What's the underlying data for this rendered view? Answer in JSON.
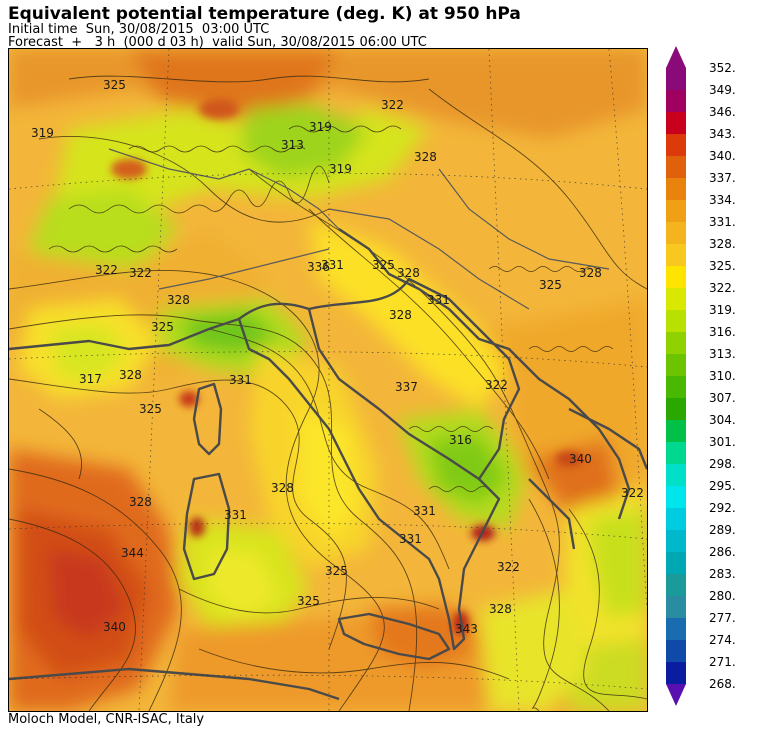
{
  "header": {
    "title": "Equivalent potential temperature (deg. K) at 950 hPa",
    "initial_time": "Initial time  Sun, 30/08/2015  03:00 UTC",
    "forecast": "Forecast  +   3 h  (000 d 03 h)  valid Sun, 30/08/2015 06:00 UTC"
  },
  "footer": {
    "credit": "Moloch Model, CNR-ISAC, Italy"
  },
  "legend": {
    "levels": [
      "352.",
      "349.",
      "346.",
      "343.",
      "340.",
      "337.",
      "334.",
      "331.",
      "328.",
      "325.",
      "322.",
      "319.",
      "316.",
      "313.",
      "310.",
      "307.",
      "304.",
      "301.",
      "298.",
      "295.",
      "292.",
      "289.",
      "286.",
      "283.",
      "280.",
      "277.",
      "274.",
      "271.",
      "268."
    ],
    "colors": [
      "#8a0a7a",
      "#a00060",
      "#c8001e",
      "#dc3a0a",
      "#e0600c",
      "#e8840e",
      "#f0a016",
      "#f4b41e",
      "#f8c81e",
      "#ffe400",
      "#d8e800",
      "#b8e000",
      "#90d200",
      "#6cc400",
      "#48b800",
      "#2aa800",
      "#00c048",
      "#00d890",
      "#00e0c8",
      "#00e4ec",
      "#00cce0",
      "#00b8cc",
      "#00a8b4",
      "#1a9a9a",
      "#2a8ca0",
      "#1a6cb0",
      "#104aa8",
      "#0a1ca0"
    ],
    "arrow_top_color": "#8a0a7a",
    "arrow_bottom_color": "#5a10b0"
  },
  "map": {
    "contour_labels": [
      {
        "text": "325"
      },
      {
        "text": "319"
      },
      {
        "text": "322"
      },
      {
        "text": "313"
      },
      {
        "text": "319"
      },
      {
        "text": "322"
      },
      {
        "text": "328"
      },
      {
        "text": "336"
      },
      {
        "text": "331"
      },
      {
        "text": "325"
      },
      {
        "text": "328"
      },
      {
        "text": "331"
      },
      {
        "text": "328"
      },
      {
        "text": "322"
      },
      {
        "text": "325"
      },
      {
        "text": "317"
      },
      {
        "text": "328"
      },
      {
        "text": "325"
      },
      {
        "text": "325"
      },
      {
        "text": "328"
      },
      {
        "text": "331"
      },
      {
        "text": "328"
      },
      {
        "text": "331"
      },
      {
        "text": "316"
      },
      {
        "text": "340"
      },
      {
        "text": "322"
      },
      {
        "text": "331"
      },
      {
        "text": "328"
      },
      {
        "text": "344"
      },
      {
        "text": "325"
      },
      {
        "text": "340"
      },
      {
        "text": "331"
      },
      {
        "text": "325"
      },
      {
        "text": "343"
      },
      {
        "text": "328"
      },
      {
        "text": "322"
      },
      {
        "text": "319"
      },
      {
        "text": "328"
      },
      {
        "text": "337"
      },
      {
        "text": "322"
      }
    ]
  }
}
